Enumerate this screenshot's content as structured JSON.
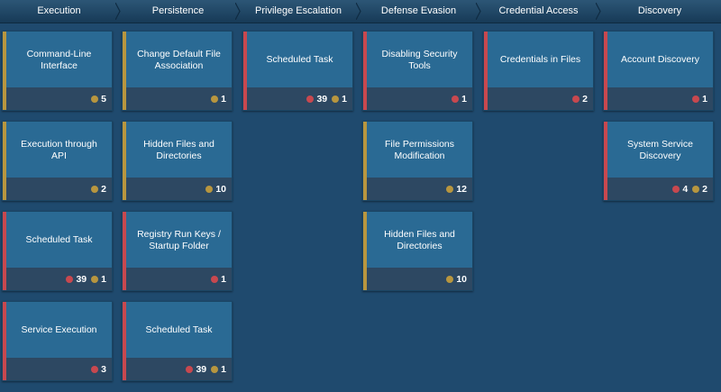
{
  "colors": {
    "critical": "#c8484f",
    "warning": "#b8963f",
    "card": "#2a6a94",
    "card_footer": "#2d4862",
    "background": "#1f4a6e"
  },
  "tactics": [
    {
      "label": "Execution",
      "cards": [
        {
          "title": "Command-Line Interface",
          "severity": "warning",
          "badges": [
            {
              "color": "gold",
              "count": "5"
            }
          ]
        },
        {
          "title": "Execution through API",
          "severity": "warning",
          "badges": [
            {
              "color": "gold",
              "count": "2"
            }
          ]
        },
        {
          "title": "Scheduled Task",
          "severity": "critical",
          "badges": [
            {
              "color": "red",
              "count": "39"
            },
            {
              "color": "gold",
              "count": "1"
            }
          ]
        },
        {
          "title": "Service Execution",
          "severity": "critical",
          "badges": [
            {
              "color": "red",
              "count": "3"
            }
          ]
        }
      ]
    },
    {
      "label": "Persistence",
      "cards": [
        {
          "title": "Change Default File Association",
          "severity": "warning",
          "badges": [
            {
              "color": "gold",
              "count": "1"
            }
          ]
        },
        {
          "title": "Hidden Files and Directories",
          "severity": "warning",
          "badges": [
            {
              "color": "gold",
              "count": "10"
            }
          ]
        },
        {
          "title": "Registry Run Keys / Startup Folder",
          "severity": "critical",
          "badges": [
            {
              "color": "red",
              "count": "1"
            }
          ]
        },
        {
          "title": "Scheduled Task",
          "severity": "critical",
          "badges": [
            {
              "color": "red",
              "count": "39"
            },
            {
              "color": "gold",
              "count": "1"
            }
          ]
        }
      ]
    },
    {
      "label": "Privilege Escalation",
      "cards": [
        {
          "title": "Scheduled Task",
          "severity": "critical",
          "badges": [
            {
              "color": "red",
              "count": "39"
            },
            {
              "color": "gold",
              "count": "1"
            }
          ]
        }
      ]
    },
    {
      "label": "Defense Evasion",
      "cards": [
        {
          "title": "Disabling Security Tools",
          "severity": "critical",
          "badges": [
            {
              "color": "red",
              "count": "1"
            }
          ]
        },
        {
          "title": "File Permissions Modification",
          "severity": "warning",
          "badges": [
            {
              "color": "gold",
              "count": "12"
            }
          ]
        },
        {
          "title": "Hidden Files and Directories",
          "severity": "warning",
          "badges": [
            {
              "color": "gold",
              "count": "10"
            }
          ]
        }
      ]
    },
    {
      "label": "Credential Access",
      "cards": [
        {
          "title": "Credentials in Files",
          "severity": "critical",
          "badges": [
            {
              "color": "red",
              "count": "2"
            }
          ]
        }
      ]
    },
    {
      "label": "Discovery",
      "cards": [
        {
          "title": "Account Discovery",
          "severity": "critical",
          "badges": [
            {
              "color": "red",
              "count": "1"
            }
          ]
        },
        {
          "title": "System Service Discovery",
          "severity": "critical",
          "badges": [
            {
              "color": "red",
              "count": "4"
            },
            {
              "color": "gold",
              "count": "2"
            }
          ]
        }
      ]
    }
  ]
}
